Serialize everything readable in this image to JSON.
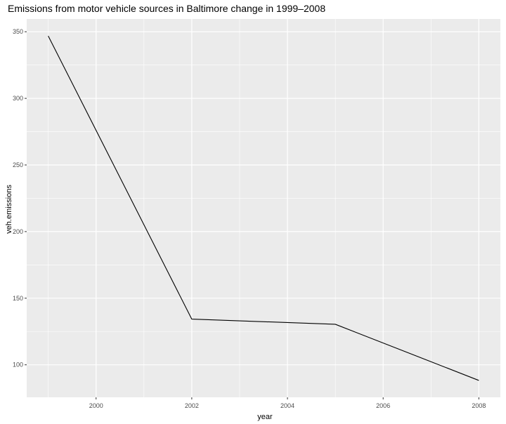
{
  "chart_data": {
    "type": "line",
    "title": "Emissions from motor vehicle sources in Baltimore change in 1999–2008",
    "xlabel": "year",
    "ylabel": "veh.emissions",
    "x": [
      1999,
      2002,
      2005,
      2008
    ],
    "series": [
      {
        "values": [
          346.82,
          134.31,
          130.43,
          88.28
        ]
      }
    ],
    "xlim": [
      1998.55,
      2008.45
    ],
    "ylim": [
      75.6,
      359.6
    ],
    "x_ticks": [
      2000,
      2002,
      2004,
      2006,
      2008
    ],
    "x_tick_labels": [
      "2000",
      "2002",
      "2004",
      "2006",
      "2008"
    ],
    "y_ticks": [
      100,
      150,
      200,
      250,
      300,
      350
    ],
    "y_tick_labels": [
      "100",
      "150",
      "200",
      "250",
      "300",
      "350"
    ],
    "grid": true,
    "legend": "none",
    "colors": {
      "panel": "#ebebeb",
      "grid": "#ffffff",
      "line": "#000000",
      "tick": "#4d4d4d"
    }
  }
}
